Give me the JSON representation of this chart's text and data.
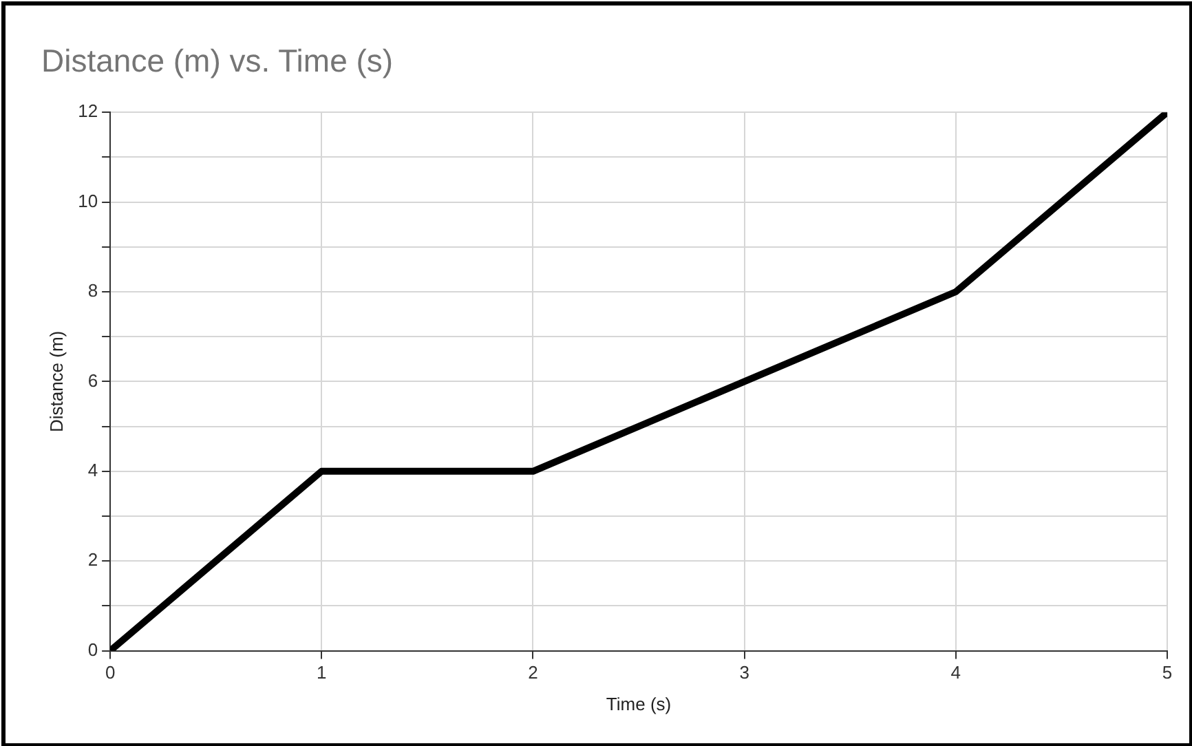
{
  "chart_data": {
    "type": "line",
    "title": "Distance (m) vs. Time (s)",
    "xlabel": "Time (s)",
    "ylabel": "Distance (m)",
    "x": [
      0,
      1,
      2,
      3,
      4,
      5
    ],
    "series": [
      {
        "color": "#000000",
        "values": [
          0,
          4,
          4,
          6,
          8,
          12
        ]
      }
    ],
    "xlim": [
      0,
      5
    ],
    "xticks": [
      0,
      1,
      2,
      3,
      4,
      5
    ],
    "ylim": [
      0,
      12
    ],
    "yticks": [
      0,
      {
        "value": 1,
        "label": null
      },
      2,
      {
        "value": 3,
        "label": null
      },
      4,
      {
        "value": 5,
        "label": null
      },
      6,
      {
        "value": 7,
        "label": null
      },
      8,
      {
        "value": 9,
        "label": null
      },
      10,
      {
        "value": 11,
        "label": null
      },
      12
    ],
    "grid": true,
    "legend": false,
    "marker": "none",
    "line_style": "solid"
  }
}
